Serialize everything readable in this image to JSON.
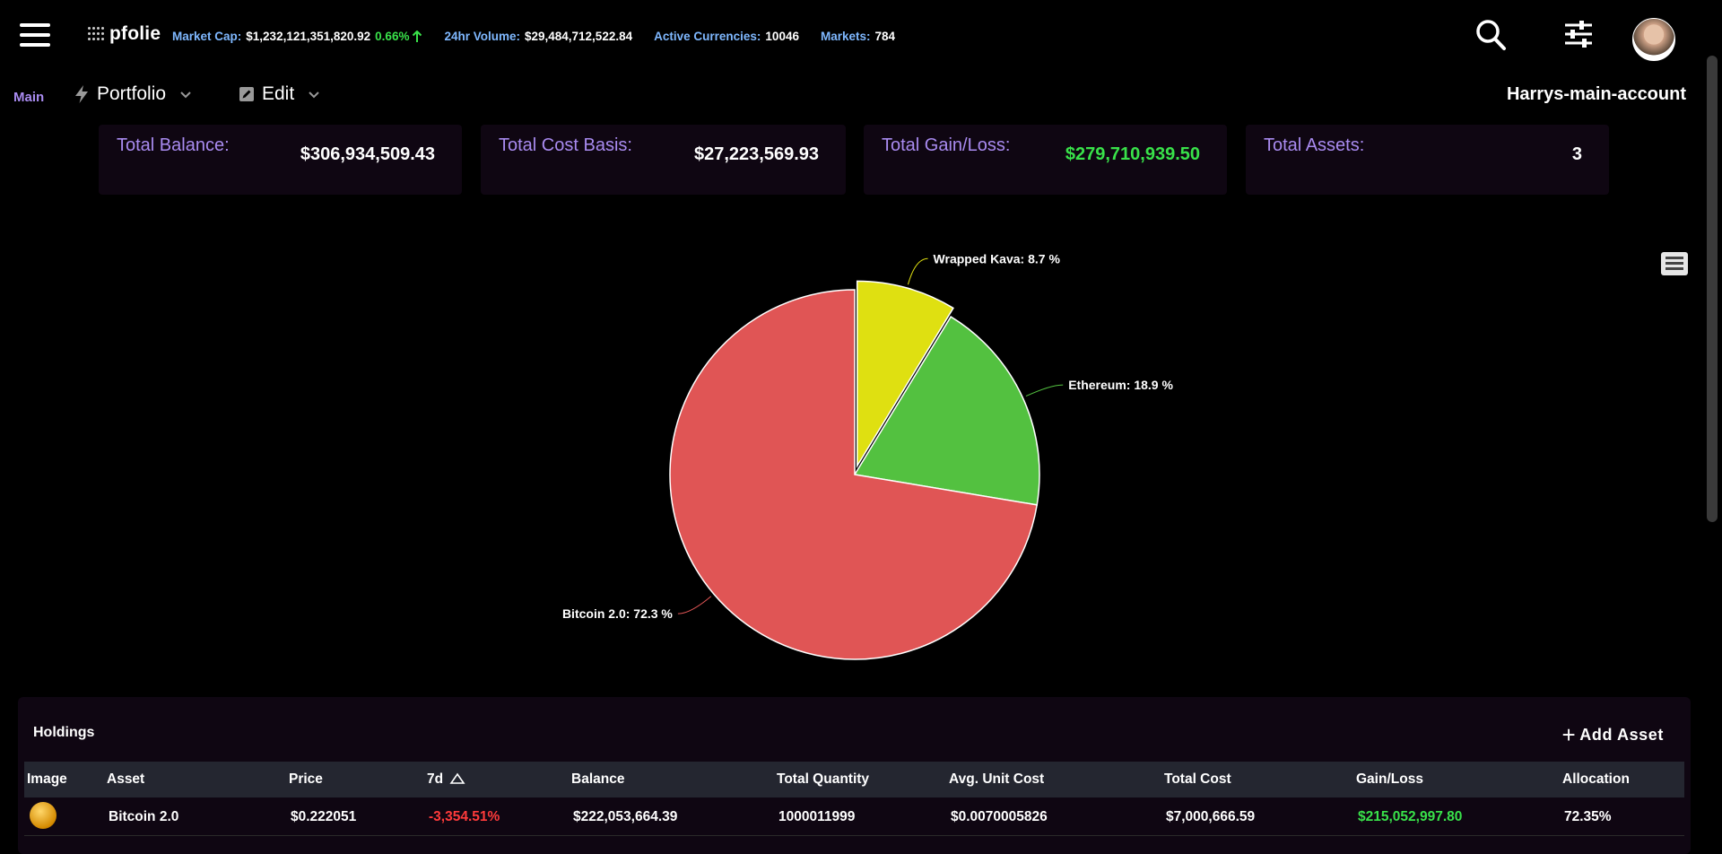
{
  "header": {
    "logo": "pfolie",
    "market_cap_label": "Market Cap:",
    "market_cap_value": "$1,232,121,351,820.92",
    "market_cap_change": "0.66%",
    "volume_label": "24hr Volume:",
    "volume_value": "$29,484,712,522.84",
    "currencies_label": "Active Currencies:",
    "currencies_value": "10046",
    "markets_label": "Markets:",
    "markets_value": "784"
  },
  "subnav": {
    "main_tab": "Main",
    "portfolio_label": "Portfolio",
    "edit_label": "Edit",
    "account_name": "Harrys-main-account"
  },
  "cards": [
    {
      "label": "Total Balance:",
      "value": "$306,934,509.43"
    },
    {
      "label": "Total Cost Basis:",
      "value": "$27,223,569.93"
    },
    {
      "label": "Total Gain/Loss:",
      "value": "$279,710,939.50"
    },
    {
      "label": "Total Assets:",
      "value": "3"
    }
  ],
  "chart_data": {
    "type": "pie",
    "slices": [
      {
        "name": "Wrapped Kava",
        "value": 8.7,
        "label": "Wrapped Kava: 8.7 %",
        "color": "#dfe011",
        "sliced": true
      },
      {
        "name": "Ethereum",
        "value": 18.9,
        "label": "Ethereum: 18.9 %",
        "color": "#53c140",
        "sliced": false
      },
      {
        "name": "Bitcoin 2.0",
        "value": 72.3,
        "label": "Bitcoin 2.0: 72.3 %",
        "color": "#e05555",
        "sliced": false
      }
    ]
  },
  "holdings": {
    "title": "Holdings",
    "add_label": "Add Asset",
    "columns": [
      "Image",
      "Asset",
      "Price",
      "7d",
      "Balance",
      "Total Quantity",
      "Avg. Unit Cost",
      "Total Cost",
      "Gain/Loss",
      "Allocation"
    ],
    "rows": [
      {
        "asset": "Bitcoin 2.0",
        "price": "$0.222051",
        "change_7d": "-3,354.51%",
        "balance": "$222,053,664.39",
        "quantity": "1000011999",
        "avg_cost": "$0.0070005826",
        "total_cost": "$7,000,666.59",
        "gain_loss": "$215,052,997.80",
        "allocation": "72.35%"
      }
    ]
  }
}
